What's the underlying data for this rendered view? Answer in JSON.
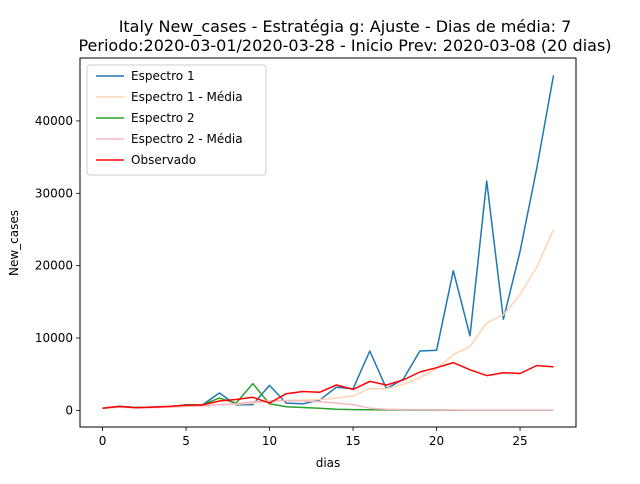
{
  "chart_data": {
    "type": "line",
    "title_line1": "Italy New_cases - Estratégia g: Ajuste - Dias de média: 7",
    "title_line2": "Periodo:2020-03-01/2020-03-28 - Inicio Prev: 2020-03-08 (20 dias)",
    "xlabel": "dias",
    "ylabel": "New_cases",
    "xlim": [
      -1.35,
      28.35
    ],
    "ylim": [
      -2300,
      48700
    ],
    "xticks": [
      0,
      5,
      10,
      15,
      20,
      25
    ],
    "yticks": [
      0,
      10000,
      20000,
      30000,
      40000
    ],
    "ytick_labels": [
      "0",
      "10000",
      "20000",
      "30000",
      "40000"
    ],
    "legend_position": "upper left",
    "x": [
      0,
      1,
      2,
      3,
      4,
      5,
      6,
      7,
      8,
      9,
      10,
      11,
      12,
      13,
      14,
      15,
      16,
      17,
      18,
      19,
      20,
      21,
      22,
      23,
      24,
      25,
      26,
      27
    ],
    "series": [
      {
        "name": "Espectro 1",
        "color": "#1f77b4",
        "values": [
          300,
          550,
          400,
          450,
          500,
          750,
          800,
          2400,
          750,
          800,
          3450,
          1000,
          900,
          1400,
          3200,
          3000,
          8200,
          3000,
          4300,
          8200,
          8300,
          19300,
          10300,
          31700,
          12600,
          22000,
          33500,
          46300
        ]
      },
      {
        "name": "Espectro 1 - Média",
        "color": "#ffd3b3",
        "values": [
          300,
          450,
          350,
          400,
          450,
          550,
          600,
          800,
          850,
          1000,
          1300,
          1400,
          1400,
          1500,
          1700,
          2000,
          3000,
          3000,
          3600,
          4500,
          5800,
          7700,
          8800,
          12100,
          13200,
          16000,
          19800,
          25000
        ]
      },
      {
        "name": "Espectro 2",
        "color": "#2ca02c",
        "values": [
          300,
          550,
          400,
          450,
          500,
          750,
          800,
          1700,
          1000,
          3700,
          900,
          500,
          400,
          300,
          150,
          100,
          80,
          60,
          50,
          40,
          30,
          20,
          20,
          20,
          20,
          20,
          20,
          20
        ]
      },
      {
        "name": "Espectro 2 - Média",
        "color": "#f4b8c3",
        "values": [
          300,
          450,
          350,
          400,
          450,
          550,
          600,
          800,
          900,
          1200,
          1300,
          1350,
          1300,
          1200,
          1000,
          800,
          300,
          150,
          100,
          80,
          60,
          50,
          40,
          30,
          30,
          30,
          30,
          30
        ]
      },
      {
        "name": "Observado",
        "color": "#ff0000",
        "values": [
          300,
          550,
          350,
          450,
          550,
          700,
          750,
          1300,
          1500,
          1800,
          1000,
          2300,
          2600,
          2500,
          3500,
          2900,
          4000,
          3500,
          4200,
          5300,
          5900,
          6600,
          5600,
          4800,
          5200,
          5100,
          6200,
          6000
        ]
      }
    ]
  }
}
